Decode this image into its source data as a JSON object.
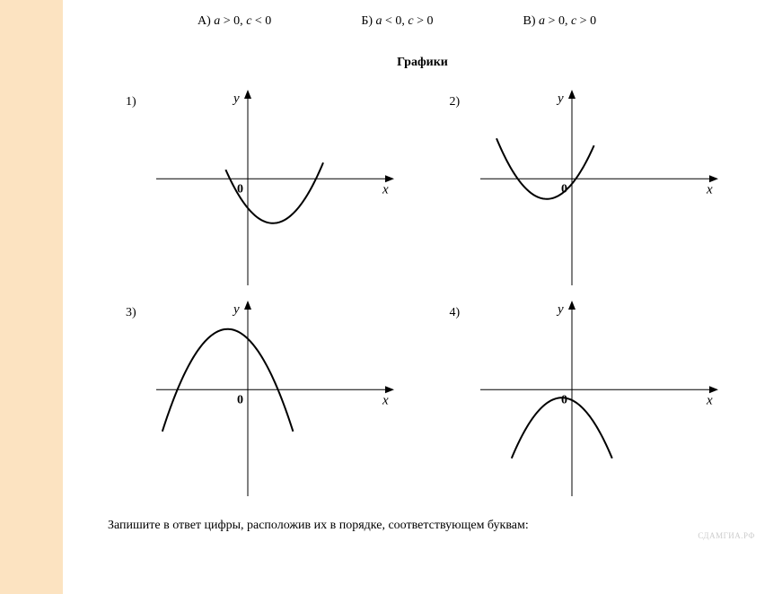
{
  "options": [
    {
      "letter": "А)",
      "var1": "a",
      "rel1": "> 0,",
      "var2": "c",
      "rel2": "< 0"
    },
    {
      "letter": "Б)",
      "var1": "a",
      "rel1": "< 0,",
      "var2": "c",
      "rel2": "> 0"
    },
    {
      "letter": "В)",
      "var1": "a",
      "rel1": "> 0,",
      "var2": "c",
      "rel2": "> 0"
    }
  ],
  "section_title": "Графики",
  "charts": [
    {
      "label": "1)",
      "type": "parabola",
      "a_sign": 1,
      "vertex_x": 0.25,
      "vertex_y": -0.55,
      "xmin": -1,
      "xmax": 1,
      "ymin": -1,
      "ymax": 1,
      "x_draw_min": -0.22,
      "x_draw_max": 0.75,
      "x_label": "x",
      "y_label": "y",
      "origin_label": "0",
      "axis_color": "#000",
      "curve_color": "#000",
      "curve_width": 2
    },
    {
      "label": "2)",
      "type": "parabola",
      "a_sign": 1,
      "vertex_x": -0.25,
      "vertex_y": -0.25,
      "xmin": -1,
      "xmax": 1,
      "ymin": -1,
      "ymax": 1,
      "x_draw_min": -0.75,
      "x_draw_max": 0.22,
      "x_label": "x",
      "y_label": "y",
      "origin_label": "0",
      "axis_color": "#000",
      "curve_color": "#000",
      "curve_width": 2
    },
    {
      "label": "3)",
      "type": "parabola",
      "a_sign": -1,
      "vertex_x": -0.2,
      "vertex_y": 0.75,
      "xmin": -1,
      "xmax": 1,
      "ymin": -1,
      "ymax": 1,
      "x_draw_min": -0.85,
      "x_draw_max": 0.45,
      "x_label": "x",
      "y_label": "y",
      "origin_label": "0",
      "axis_color": "#000",
      "curve_color": "#000",
      "curve_width": 2
    },
    {
      "label": "4)",
      "type": "parabola",
      "a_sign": -1,
      "vertex_x": -0.1,
      "vertex_y": -0.1,
      "xmin": -1,
      "xmax": 1,
      "ymin": -1,
      "ymax": 1,
      "x_draw_min": -0.6,
      "x_draw_max": 0.4,
      "x_label": "x",
      "y_label": "y",
      "origin_label": "0",
      "axis_color": "#000",
      "curve_color": "#000",
      "curve_width": 2
    }
  ],
  "watermark": "СДАМГИА.РФ",
  "bottom_text": "Запишите в ответ цифры, расположив их в порядке, соответствующем буквам:"
}
